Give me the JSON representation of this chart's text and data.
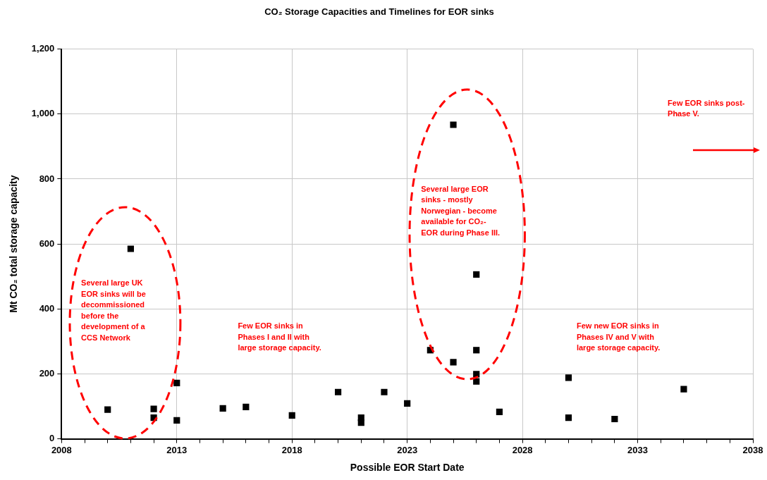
{
  "chart_data": {
    "type": "scatter",
    "title": "CO₂ Storage Capacities and Timelines for EOR sinks",
    "xlabel": "Possible EOR Start Date",
    "ylabel": "Mt CO₂ total storage capacity",
    "x": [
      2010,
      2011,
      2012,
      2012,
      2013,
      2013,
      2015,
      2016,
      2018,
      2020,
      2021,
      2021,
      2022,
      2023,
      2024,
      2025,
      2025,
      2026,
      2026,
      2026,
      2026,
      2027,
      2030,
      2030,
      2032,
      2035
    ],
    "series": [
      {
        "color": "#000000",
        "values": [
          90,
          585,
          92,
          65,
          172,
          57,
          94,
          98,
          72,
          144,
          65,
          50,
          144,
          109,
          273,
          967,
          236,
          506,
          273,
          199,
          177,
          83,
          188,
          65,
          61,
          153
        ]
      }
    ],
    "xlim": [
      2008,
      2038
    ],
    "xticks": [
      2008,
      {
        "value": 2009,
        "label": null
      },
      {
        "value": 2010,
        "label": null
      },
      {
        "value": 2011,
        "label": null
      },
      {
        "value": 2012,
        "label": null
      },
      2013,
      {
        "value": 2014,
        "label": null
      },
      {
        "value": 2015,
        "label": null
      },
      {
        "value": 2016,
        "label": null
      },
      {
        "value": 2017,
        "label": null
      },
      2018,
      {
        "value": 2019,
        "label": null
      },
      {
        "value": 2020,
        "label": null
      },
      {
        "value": 2021,
        "label": null
      },
      {
        "value": 2022,
        "label": null
      },
      2023,
      {
        "value": 2024,
        "label": null
      },
      {
        "value": 2025,
        "label": null
      },
      {
        "value": 2026,
        "label": null
      },
      {
        "value": 2027,
        "label": null
      },
      2028,
      {
        "value": 2029,
        "label": null
      },
      {
        "value": 2030,
        "label": null
      },
      {
        "value": 2031,
        "label": null
      },
      {
        "value": 2032,
        "label": null
      },
      2033,
      {
        "value": 2034,
        "label": null
      },
      {
        "value": 2035,
        "label": null
      },
      {
        "value": 2036,
        "label": null
      },
      {
        "value": 2037,
        "label": null
      },
      2038
    ],
    "ylim": [
      0,
      1200
    ],
    "yticks": [
      0,
      200,
      400,
      600,
      800,
      {
        "value": 1000,
        "label": "1,000"
      },
      {
        "value": 1200,
        "label": "1,200"
      }
    ],
    "grid": true,
    "legend": false,
    "marker": "square",
    "annotations": [
      "Several large UK\nEOR sinks will be\ndecommissioned\nbefore the\ndevelopment of a\nCCS Network",
      "Few EOR sinks in\nPhases I and II with\nlarge storage capacity.",
      "Several large EOR\nsinks - mostly\nNorwegian - become\navailable for CO₂-\nEOR during Phase III.",
      "Few new EOR sinks in\nPhases IV and V with\nlarge storage capacity.",
      "Few EOR sinks post-\nPhase V."
    ]
  }
}
